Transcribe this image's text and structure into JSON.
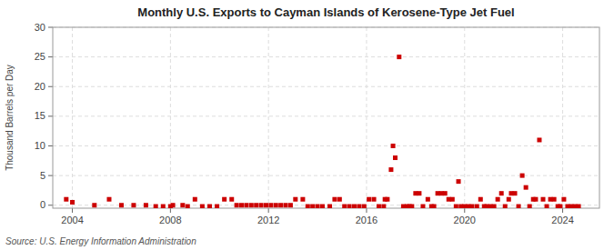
{
  "chart_data": {
    "type": "scatter",
    "title": "Monthly U.S. Exports to Cayman Islands of Kerosene-Type Jet Fuel",
    "ylabel": "Thousand Barrels per Day",
    "annotations": [
      "Source: U.S. Energy Information Administration"
    ],
    "color": "#cc0000",
    "marker": "square",
    "grid": true,
    "xlim": [
      2003.2,
      2025.5
    ],
    "ylim": [
      -0.5,
      30
    ],
    "xticks": [
      2004,
      2008,
      2012,
      2016,
      2020,
      2024
    ],
    "yticks": [
      0,
      5,
      10,
      15,
      20,
      25,
      30
    ],
    "x": [
      2003.75,
      2004.0,
      2004.9,
      2005.5,
      2006.0,
      2006.5,
      2007.0,
      2007.4,
      2007.7,
      2008.0,
      2008.1,
      2008.5,
      2008.7,
      2009.0,
      2009.3,
      2009.6,
      2009.9,
      2010.2,
      2010.5,
      2010.7,
      2010.9,
      2011.1,
      2011.3,
      2011.5,
      2011.7,
      2011.9,
      2012.1,
      2012.3,
      2012.5,
      2012.7,
      2012.9,
      2013.1,
      2013.4,
      2013.6,
      2013.8,
      2014.0,
      2014.2,
      2014.5,
      2014.7,
      2014.9,
      2015.1,
      2015.3,
      2015.5,
      2015.7,
      2015.9,
      2016.1,
      2016.3,
      2016.5,
      2016.7,
      2016.75,
      2016.85,
      2017.0,
      2017.08,
      2017.17,
      2017.33,
      2017.5,
      2017.65,
      2017.75,
      2017.85,
      2018.0,
      2018.15,
      2018.3,
      2018.5,
      2018.65,
      2018.75,
      2018.9,
      2019.05,
      2019.2,
      2019.35,
      2019.5,
      2019.65,
      2019.75,
      2019.85,
      2020.0,
      2020.15,
      2020.3,
      2020.5,
      2020.65,
      2020.8,
      2020.9,
      2021.05,
      2021.2,
      2021.35,
      2021.5,
      2021.65,
      2021.8,
      2021.9,
      2022.05,
      2022.2,
      2022.35,
      2022.5,
      2022.65,
      2022.8,
      2022.9,
      2023.05,
      2023.2,
      2023.35,
      2023.5,
      2023.65,
      2023.8,
      2023.9,
      2024.05,
      2024.2,
      2024.35,
      2024.5,
      2024.65
    ],
    "values": [
      1.0,
      0.5,
      0.0,
      1.0,
      0.0,
      0.0,
      0.0,
      -0.2,
      -0.2,
      -0.2,
      0.0,
      0.0,
      -0.2,
      1.0,
      -0.2,
      -0.2,
      -0.2,
      1.0,
      1.0,
      0.0,
      0.0,
      0.0,
      0.0,
      0.0,
      0.0,
      0.0,
      0.0,
      0.0,
      0.0,
      0.0,
      0.0,
      1.0,
      1.0,
      -0.2,
      -0.2,
      -0.2,
      -0.2,
      -0.2,
      1.0,
      1.0,
      -0.2,
      -0.2,
      -0.2,
      -0.2,
      -0.2,
      1.0,
      1.0,
      -0.2,
      -0.2,
      1.0,
      1.0,
      6.0,
      10.0,
      8.0,
      25.0,
      -0.2,
      -0.2,
      -0.2,
      -0.2,
      2.0,
      2.0,
      -0.2,
      1.0,
      -0.2,
      -0.2,
      2.0,
      2.0,
      2.0,
      1.0,
      1.0,
      -0.2,
      4.0,
      -0.2,
      -0.2,
      -0.2,
      -0.2,
      -0.2,
      1.0,
      -0.2,
      -0.2,
      -0.2,
      -0.2,
      1.0,
      2.0,
      -0.2,
      1.0,
      2.0,
      2.0,
      -0.2,
      5.0,
      3.0,
      -0.2,
      1.0,
      1.0,
      11.0,
      1.0,
      -0.2,
      1.0,
      1.0,
      -0.2,
      -0.2,
      1.0,
      -0.2,
      -0.2,
      -0.2,
      -0.2
    ]
  }
}
